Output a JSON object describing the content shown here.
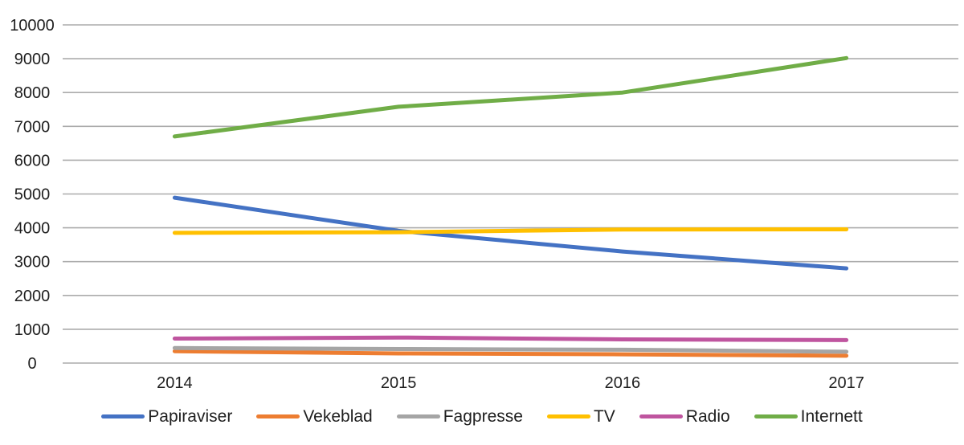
{
  "chart_data": {
    "type": "line",
    "title": "",
    "xlabel": "",
    "ylabel": "",
    "categories": [
      "2014",
      "2015",
      "2016",
      "2017"
    ],
    "series": [
      {
        "name": "Papiraviser",
        "color": "#4472C4",
        "values": [
          4890,
          3910,
          3300,
          2800
        ]
      },
      {
        "name": "Vekeblad",
        "color": "#ED7D31",
        "values": [
          350,
          285,
          260,
          215
        ]
      },
      {
        "name": "Fagpresse",
        "color": "#A5A5A5",
        "values": [
          445,
          415,
          395,
          335
        ]
      },
      {
        "name": "TV",
        "color": "#FFC000",
        "values": [
          3850,
          3870,
          3950,
          3955
        ]
      },
      {
        "name": "Radio",
        "color": "#BF559F",
        "values": [
          725,
          755,
          700,
          680
        ]
      },
      {
        "name": "Internett",
        "color": "#70AD47",
        "values": [
          6700,
          7580,
          8000,
          9020
        ]
      }
    ],
    "ylim": [
      0,
      10000
    ],
    "y_step": 1000,
    "grid": true,
    "gridline_color": "#ABABAB",
    "legend_position": "bottom"
  },
  "axis": {
    "y_ticks": [
      "10000",
      "9000",
      "8000",
      "7000",
      "6000",
      "5000",
      "4000",
      "3000",
      "2000",
      "1000",
      "0"
    ],
    "x_ticks": [
      "2014",
      "2015",
      "2016",
      "2017"
    ]
  }
}
